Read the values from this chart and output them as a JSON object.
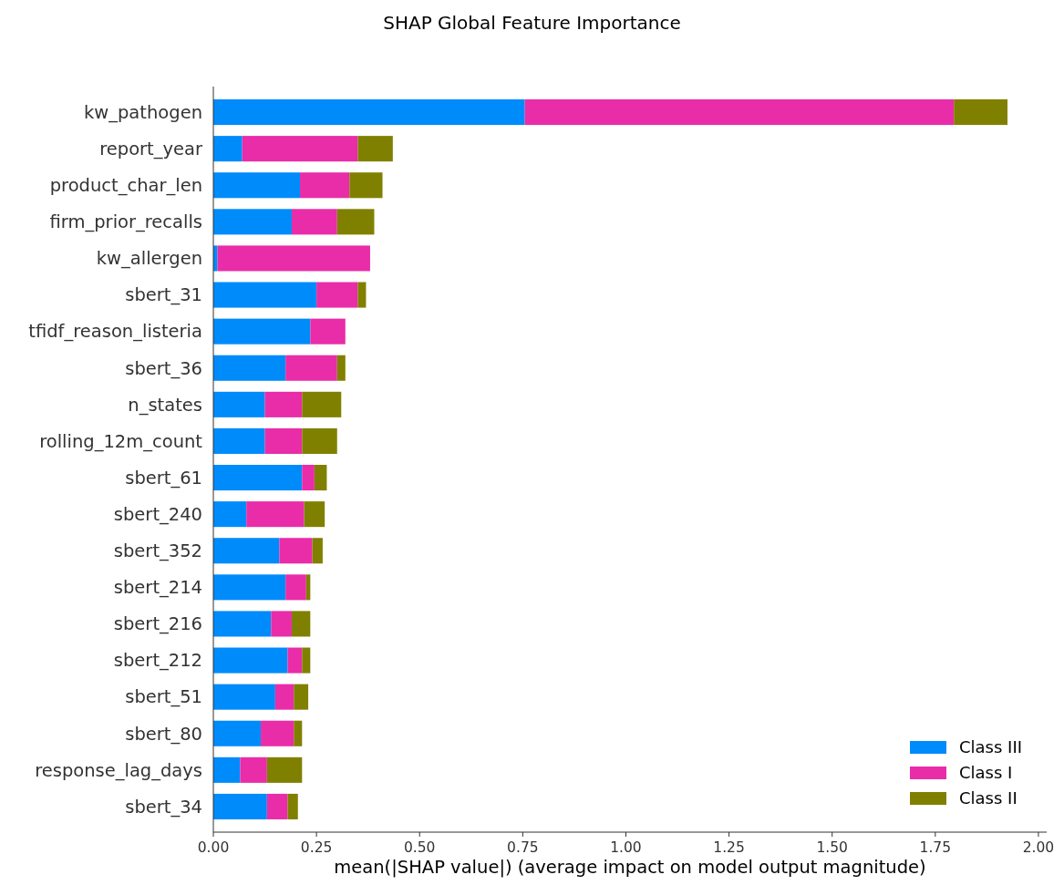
{
  "chart_data": {
    "type": "bar",
    "orientation": "horizontal",
    "stacked": true,
    "title": "SHAP Global Feature Importance",
    "xlabel": "mean(|SHAP value|) (average impact on model output magnitude)",
    "categories": [
      "kw_pathogen",
      "report_year",
      "product_char_len",
      "firm_prior_recalls",
      "kw_allergen",
      "sbert_31",
      "tfidf_reason_listeria",
      "sbert_36",
      "n_states",
      "rolling_12m_count",
      "sbert_61",
      "sbert_240",
      "sbert_352",
      "sbert_214",
      "sbert_216",
      "sbert_212",
      "sbert_51",
      "sbert_80",
      "response_lag_days",
      "sbert_34"
    ],
    "series": [
      {
        "name": "Class III",
        "color": "#008bfb",
        "values": [
          0.755,
          0.07,
          0.21,
          0.19,
          0.01,
          0.25,
          0.235,
          0.175,
          0.125,
          0.125,
          0.215,
          0.08,
          0.16,
          0.175,
          0.14,
          0.18,
          0.15,
          0.115,
          0.065,
          0.13
        ]
      },
      {
        "name": "Class I",
        "color": "#e92ca8",
        "values": [
          1.04,
          0.28,
          0.12,
          0.11,
          0.37,
          0.1,
          0.085,
          0.125,
          0.09,
          0.09,
          0.03,
          0.14,
          0.08,
          0.05,
          0.05,
          0.035,
          0.045,
          0.08,
          0.065,
          0.05
        ]
      },
      {
        "name": "Class II",
        "color": "#808000",
        "values": [
          0.13,
          0.085,
          0.08,
          0.09,
          0,
          0.02,
          0,
          0.02,
          0.095,
          0.085,
          0.03,
          0.05,
          0.025,
          0.01,
          0.045,
          0.02,
          0.035,
          0.02,
          0.085,
          0.025
        ]
      }
    ],
    "xlim": [
      0,
      2.02
    ],
    "xticks": [
      {
        "value": 0,
        "label": "0.00"
      },
      {
        "value": 0.25,
        "label": "0.25"
      },
      {
        "value": 0.5,
        "label": "0.50"
      },
      {
        "value": 0.75,
        "label": "0.75"
      },
      {
        "value": 1,
        "label": "1.00"
      },
      {
        "value": 1.25,
        "label": "1.25"
      },
      {
        "value": 1.5,
        "label": "1.50"
      },
      {
        "value": 1.75,
        "label": "1.75"
      },
      {
        "value": 2,
        "label": "2.00"
      }
    ],
    "legend": "bottom right",
    "grid": false
  }
}
